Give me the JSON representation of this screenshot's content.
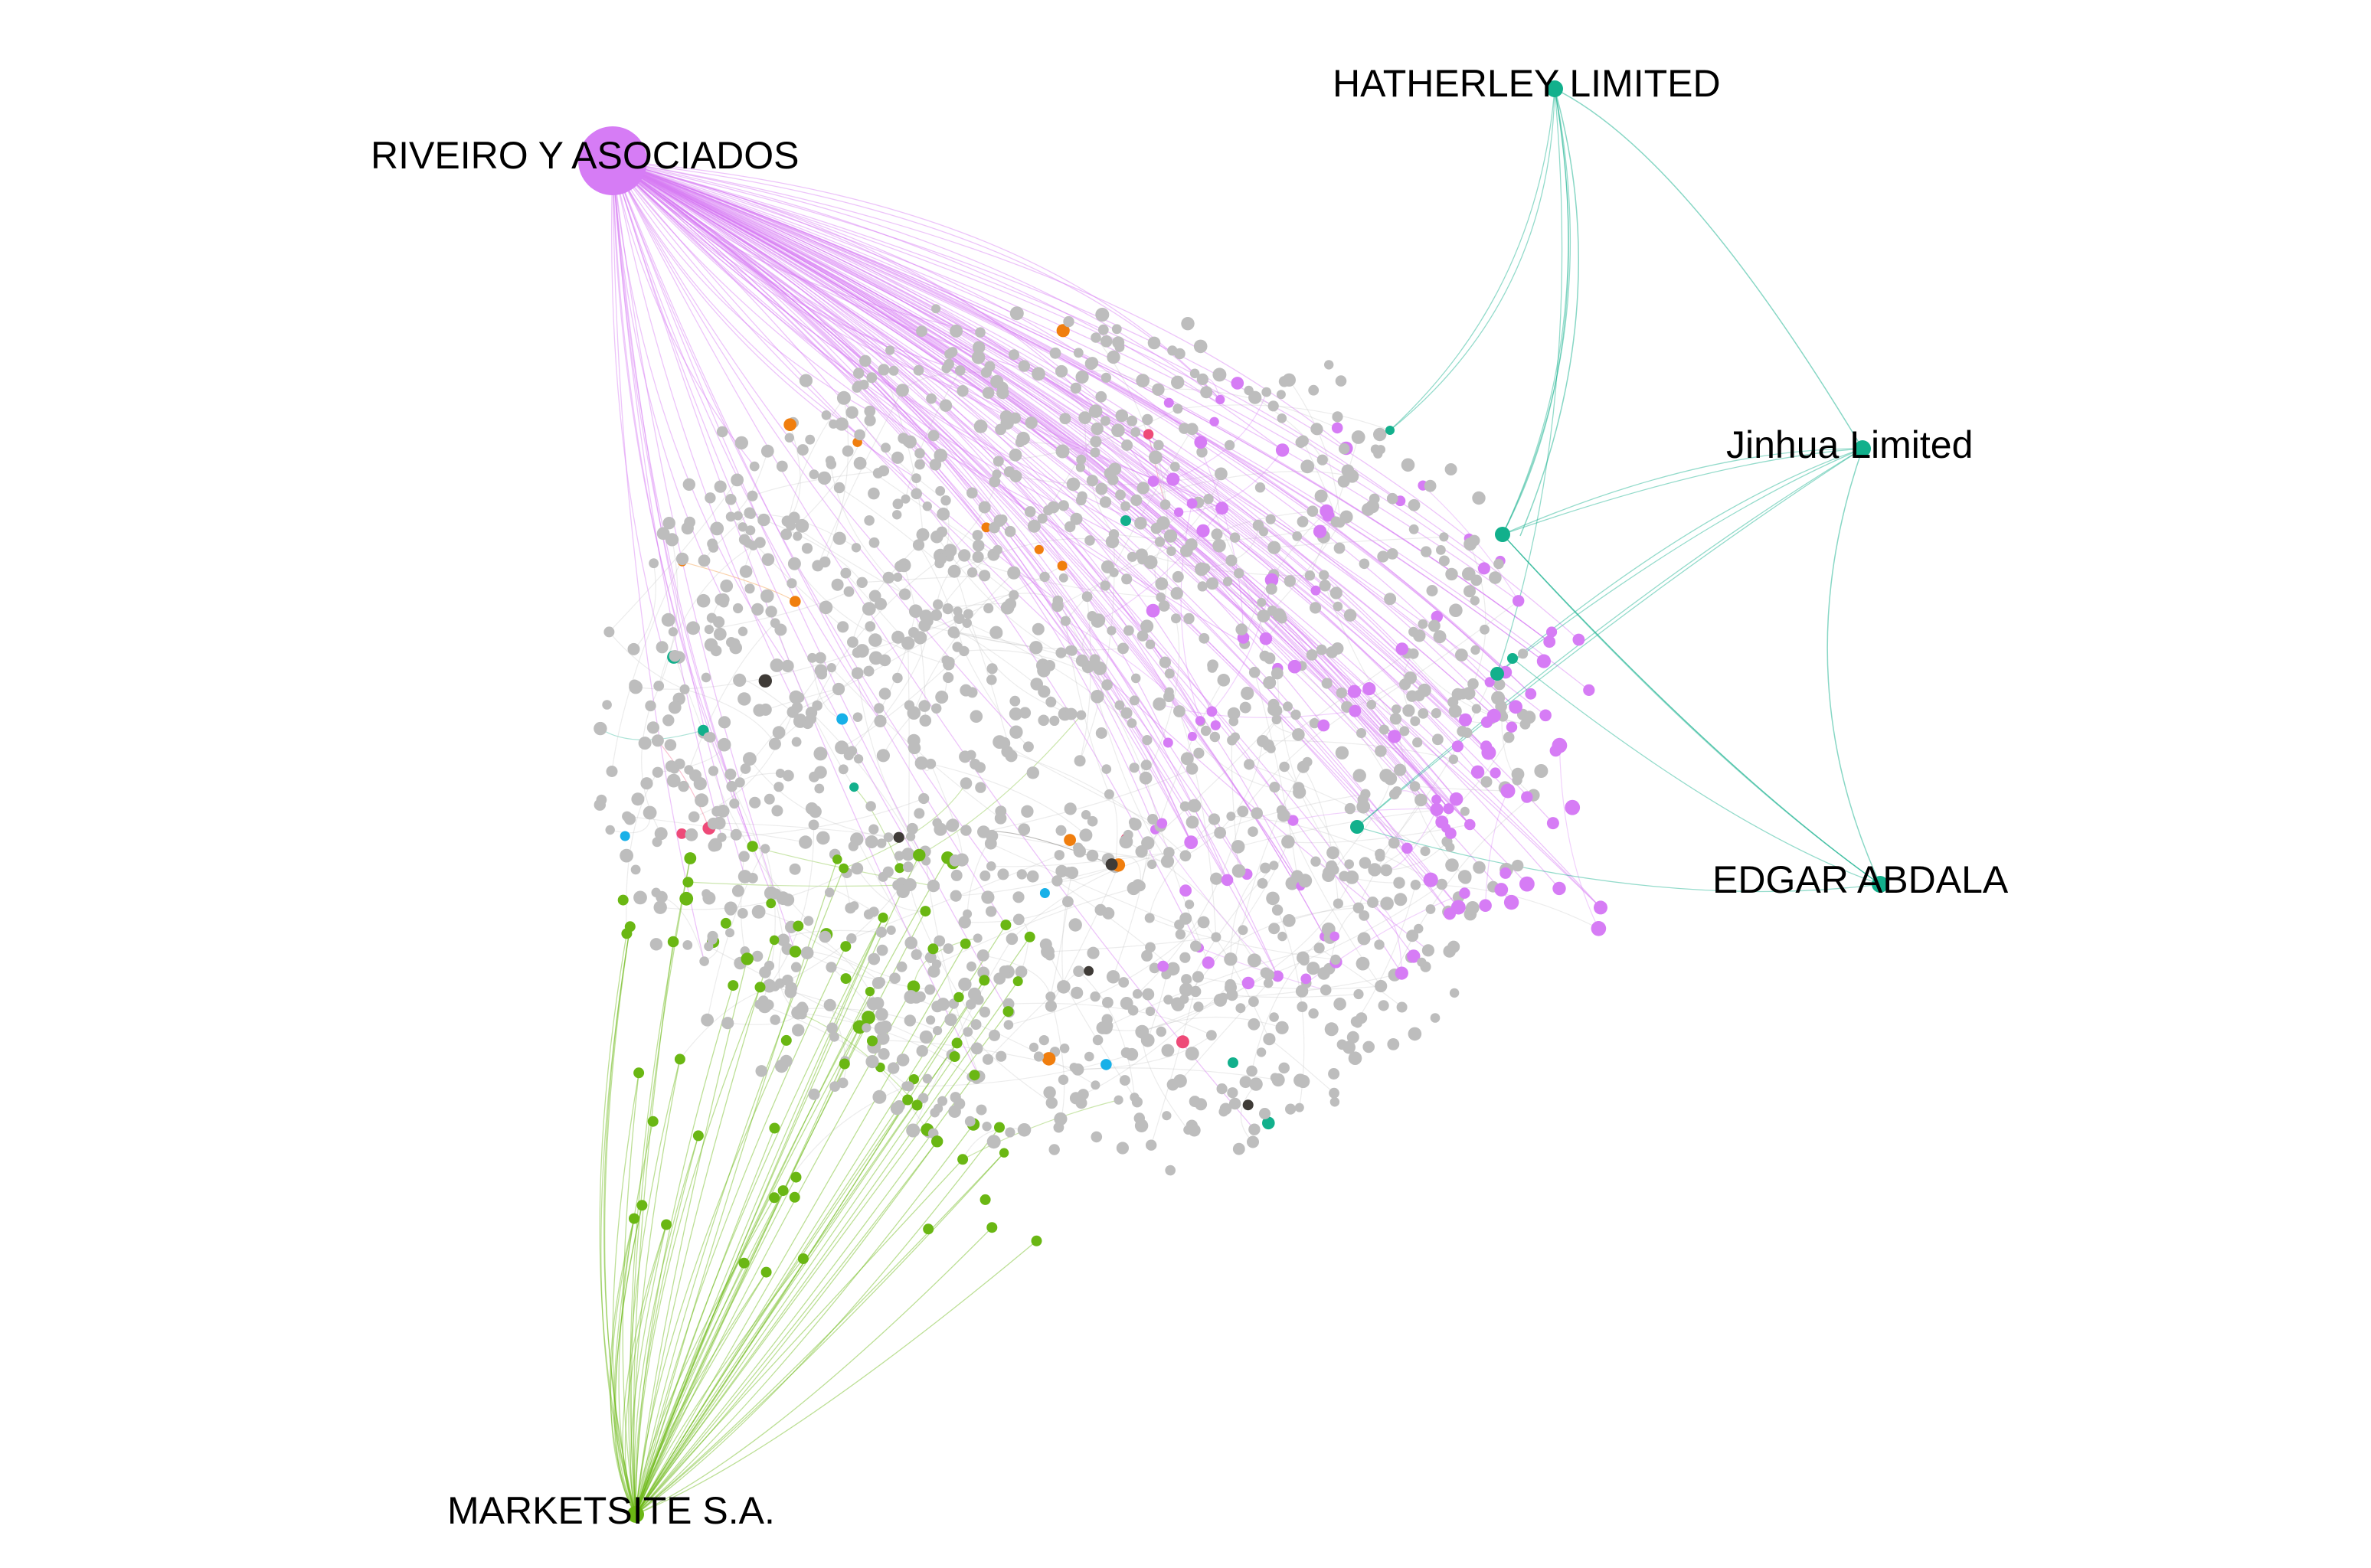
{
  "labels": {
    "riveiro": "RIVEIRO Y ASOCIADOS",
    "hatherley": "HATHERLEY LIMITED",
    "jinhua": "Jinhua Limited",
    "edgar": "EDGAR ABDALA",
    "marketsite": "MARKETSITE S.A."
  },
  "colors": {
    "background": "#ffffff",
    "default_node": "#bdbdbd",
    "violet": "#d67cf5",
    "teal": "#12b08c",
    "green": "#6ab713",
    "orange": "#f07e0e",
    "pink": "#ee4a78",
    "cyan": "#17b0e8",
    "dark": "#3f3b37",
    "edge_default": "#c9c9c9"
  },
  "legend": []
}
